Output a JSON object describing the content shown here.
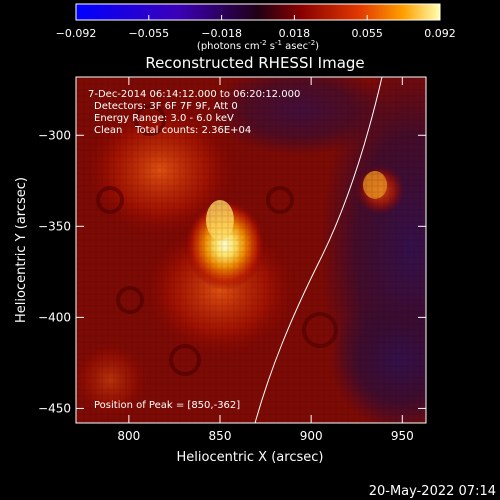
{
  "colorbar": {
    "ticks": [
      "-0.092",
      "-0.055",
      "-0.018",
      "0.018",
      "0.055",
      "0.092"
    ],
    "units": "(photons cm",
    "units_exp1": "-2",
    "units_mid1": " s",
    "units_exp2": "-1",
    "units_mid2": " asec",
    "units_exp3": "-2",
    "units_end": ")"
  },
  "chart_data": {
    "type": "heatmap",
    "title": "Reconstructed RHESSI Image",
    "xlabel": "Heliocentric X (arcsec)",
    "ylabel": "Heliocentric Y (arcsec)",
    "xlim": [
      771,
      963
    ],
    "ylim": [
      -458,
      -268
    ],
    "x_ticks": [
      800,
      850,
      900,
      950
    ],
    "y_ticks": [
      -300,
      -350,
      -400,
      -450
    ],
    "color_range": [
      -0.092,
      0.092
    ],
    "annotations": [
      "7-Dec-2014 06:14:12.000 to 06:20:12.000",
      "Detectors: 3F 6F 7F 9F, Att 0",
      "Energy Range: 3.0 - 6.0 keV",
      "Clean    Total counts: 2.36E+04"
    ],
    "peak_label": "Position of Peak = [850,-362]",
    "peak": [
      850,
      -362
    ]
  },
  "timestamp": "20-May-2022 07:14"
}
